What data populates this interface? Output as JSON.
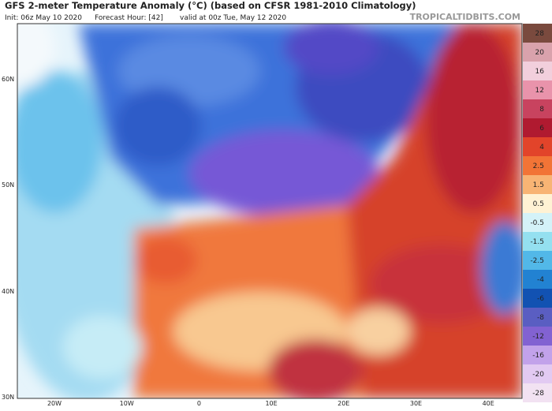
{
  "header": {
    "title": "GFS 2-meter Temperature Anomaly (°C) (based on CFSR 1981-2010 Climatology)",
    "init": "Init: 06z May 10 2020",
    "forecast": "Forecast Hour: [42]",
    "valid": "valid at 00z Tue, May 12 2020",
    "site": "TROPICALTIDBITS.COM"
  },
  "latitudes": [
    "60N",
    "50N",
    "40N",
    "30N"
  ],
  "longitudes": [
    "20W",
    "10W",
    "0",
    "10E",
    "20E",
    "30E",
    "40E"
  ],
  "colorbar": [
    {
      "label": 28,
      "color": "#7a4a3e"
    },
    {
      "label": 20,
      "color": "#d9a2ac"
    },
    {
      "label": 16,
      "color": "#f2cfdc"
    },
    {
      "label": 12,
      "color": "#e993ab"
    },
    {
      "label": 8,
      "color": "#c8435f"
    },
    {
      "label": 6,
      "color": "#b01a30"
    },
    {
      "label": 4,
      "color": "#e2442a"
    },
    {
      "label": 2.5,
      "color": "#f27436"
    },
    {
      "label": 1.5,
      "color": "#f8b474"
    },
    {
      "label": 0.5,
      "color": "#fff2d4"
    },
    {
      "label": -0.5,
      "color": "#d4f2f8"
    },
    {
      "label": -1.5,
      "color": "#94e0f0"
    },
    {
      "label": -2.5,
      "color": "#52b8e8"
    },
    {
      "label": -4,
      "color": "#2282d2"
    },
    {
      "label": -6,
      "color": "#1252b2"
    },
    {
      "label": -8,
      "color": "#5a5ec2"
    },
    {
      "label": -12,
      "color": "#8262d2"
    },
    {
      "label": -16,
      "color": "#c2a2ea"
    },
    {
      "label": -20,
      "color": "#e2caf2"
    },
    {
      "label": -28,
      "color": "#f2e2f2"
    }
  ]
}
